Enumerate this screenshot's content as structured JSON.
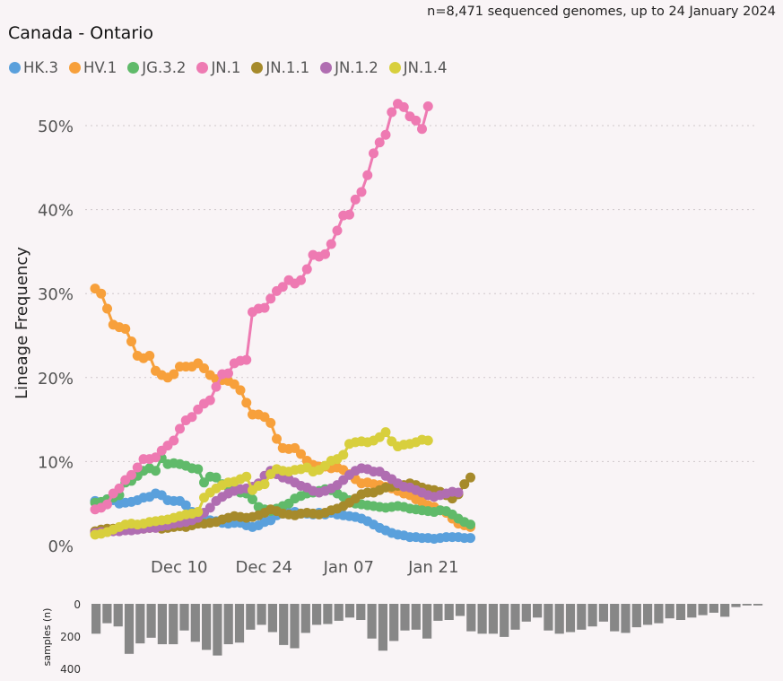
{
  "subtitle": "n=8,471 sequenced genomes, up to 24 January 2024",
  "title": "Canada - Ontario",
  "chart_data": {
    "type": "line",
    "title": "Canada - Ontario",
    "subtitle": "n=8,471 sequenced genomes, up to 24 January 2024",
    "ylabel": "Lineage Frequency",
    "xlabel": "",
    "ylim": [
      0,
      55
    ],
    "yticks": [
      "0%",
      "10%",
      "20%",
      "30%",
      "40%",
      "50%"
    ],
    "xticks": [
      "Dec 10",
      "Dec 24",
      "Jan 07",
      "Jan 21"
    ],
    "grid": true,
    "legend_position": "top-left",
    "start_date": "2023-11-27",
    "series": [
      {
        "name": "HK.3",
        "color": "#5aa0dc",
        "values": [
          5.3,
          5.1,
          5.5,
          5.4,
          5.0,
          5.1,
          5.2,
          5.4,
          5.7,
          5.8,
          6.2,
          6.0,
          5.4,
          5.3,
          5.3,
          4.8,
          4.0,
          3.8,
          3.3,
          3.0,
          2.9,
          2.7,
          2.6,
          2.7,
          2.7,
          2.4,
          2.2,
          2.4,
          2.8,
          3.0,
          3.6,
          3.8,
          3.9,
          4.0,
          3.8,
          3.8,
          3.7,
          3.9,
          3.7,
          3.9,
          3.7,
          3.6,
          3.5,
          3.4,
          3.2,
          2.9,
          2.5,
          2.1,
          1.8,
          1.5,
          1.3,
          1.2,
          1.0,
          1.0,
          0.9,
          0.9,
          0.8,
          0.9,
          1.0,
          1.0,
          1.0,
          0.9,
          0.9
        ]
      },
      {
        "name": "HV.1",
        "color": "#f7a03b",
        "values": [
          30.6,
          30.0,
          28.2,
          26.3,
          26.0,
          25.8,
          24.3,
          22.6,
          22.3,
          22.6,
          20.8,
          20.3,
          20.0,
          20.4,
          21.3,
          21.3,
          21.3,
          21.7,
          21.1,
          20.3,
          19.8,
          19.7,
          19.6,
          19.2,
          18.5,
          17.0,
          15.6,
          15.6,
          15.3,
          14.6,
          12.7,
          11.6,
          11.5,
          11.6,
          10.9,
          10.1,
          9.6,
          9.4,
          9.4,
          9.2,
          9.3,
          9.0,
          8.5,
          7.9,
          7.4,
          7.5,
          7.3,
          7.2,
          7.0,
          6.8,
          6.5,
          6.2,
          6.0,
          5.5,
          5.2,
          4.8,
          4.6,
          4.2,
          3.9,
          3.2,
          2.6,
          2.4,
          2.2
        ]
      },
      {
        "name": "JG.3.2",
        "color": "#60ba6a",
        "values": [
          5.1,
          5.2,
          5.5,
          5.7,
          6.0,
          7.5,
          7.7,
          8.3,
          8.9,
          9.2,
          8.9,
          10.4,
          9.7,
          9.8,
          9.7,
          9.5,
          9.2,
          9.1,
          7.5,
          8.2,
          8.1,
          7.3,
          7.0,
          6.7,
          6.3,
          6.2,
          5.5,
          4.6,
          4.3,
          4.1,
          4.4,
          4.7,
          5.0,
          5.6,
          5.9,
          6.2,
          6.3,
          6.5,
          6.7,
          6.6,
          6.2,
          5.8,
          5.4,
          5.0,
          4.9,
          4.8,
          4.7,
          4.6,
          4.5,
          4.6,
          4.7,
          4.6,
          4.4,
          4.3,
          4.2,
          4.1,
          4.0,
          4.2,
          4.1,
          3.7,
          3.2,
          2.8,
          2.5
        ]
      },
      {
        "name": "JN.1",
        "color": "#ee7ab2",
        "values": [
          4.3,
          4.5,
          4.9,
          6.2,
          6.8,
          7.8,
          8.4,
          9.3,
          10.3,
          10.3,
          10.5,
          11.3,
          11.9,
          12.5,
          13.9,
          14.9,
          15.3,
          16.2,
          16.9,
          17.3,
          18.9,
          20.4,
          20.5,
          21.7,
          22.0,
          22.1,
          27.8,
          28.2,
          28.3,
          29.4,
          30.3,
          30.8,
          31.6,
          31.2,
          31.6,
          32.9,
          34.6,
          34.4,
          34.7,
          35.9,
          37.5,
          39.3,
          39.4,
          41.2,
          42.1,
          44.1,
          46.7,
          48.0,
          48.9,
          51.6,
          52.6,
          52.2,
          51.1,
          50.6,
          49.6,
          52.3
        ]
      },
      {
        "name": "JN.1.1",
        "color": "#a68a2b",
        "values": [
          1.7,
          1.9,
          2.0,
          2.0,
          2.0,
          2.1,
          2.0,
          2.1,
          2.0,
          2.1,
          2.2,
          2.0,
          2.1,
          2.2,
          2.3,
          2.2,
          2.4,
          2.6,
          2.6,
          2.7,
          2.8,
          3.1,
          3.3,
          3.5,
          3.4,
          3.3,
          3.4,
          3.6,
          3.9,
          4.3,
          4.1,
          3.8,
          3.7,
          3.6,
          3.8,
          3.9,
          3.8,
          3.7,
          3.9,
          4.2,
          4.4,
          4.7,
          5.1,
          5.6,
          6.1,
          6.3,
          6.3,
          6.6,
          6.9,
          7.0,
          7.1,
          7.2,
          7.4,
          7.2,
          6.9,
          6.7,
          6.6,
          6.4,
          6.0,
          5.6,
          6.1,
          7.3,
          8.1
        ]
      },
      {
        "name": "JN.1.2",
        "color": "#b06db1",
        "values": [
          1.5,
          1.6,
          1.6,
          1.7,
          1.7,
          1.8,
          1.8,
          1.9,
          2.0,
          2.1,
          2.1,
          2.3,
          2.4,
          2.6,
          2.7,
          2.8,
          3.0,
          3.3,
          3.9,
          4.5,
          5.3,
          5.8,
          6.2,
          6.5,
          6.7,
          6.8,
          7.0,
          7.4,
          8.3,
          8.9,
          8.5,
          8.1,
          7.9,
          7.5,
          7.1,
          6.9,
          6.5,
          6.3,
          6.5,
          6.8,
          7.2,
          7.8,
          8.4,
          8.9,
          9.2,
          9.1,
          8.8,
          8.8,
          8.3,
          7.9,
          7.4,
          7.0,
          6.9,
          6.6,
          6.3,
          6.0,
          5.8,
          6.0,
          6.2,
          6.4,
          6.3
        ]
      },
      {
        "name": "JN.1.4",
        "color": "#d8cf3d",
        "values": [
          1.3,
          1.4,
          1.6,
          1.9,
          2.2,
          2.5,
          2.6,
          2.5,
          2.6,
          2.8,
          2.9,
          3.0,
          3.1,
          3.3,
          3.5,
          3.7,
          3.8,
          4.0,
          5.7,
          6.3,
          6.8,
          7.2,
          7.5,
          7.6,
          7.9,
          8.2,
          6.6,
          7.1,
          7.3,
          8.5,
          9.1,
          8.9,
          8.8,
          9.0,
          9.1,
          9.3,
          8.8,
          9.0,
          9.5,
          10.1,
          10.3,
          10.8,
          12.1,
          12.3,
          12.4,
          12.3,
          12.5,
          12.9,
          13.5,
          12.4,
          11.8,
          12.0,
          12.1,
          12.3,
          12.6,
          12.5
        ]
      }
    ],
    "samples": {
      "ylabel": "samples (n)",
      "yticks": [
        "0",
        "200",
        "400"
      ],
      "values": [
        185,
        120,
        140,
        310,
        245,
        210,
        250,
        250,
        165,
        235,
        285,
        320,
        250,
        240,
        160,
        130,
        175,
        255,
        275,
        180,
        130,
        125,
        105,
        85,
        100,
        215,
        290,
        230,
        165,
        160,
        215,
        105,
        100,
        75,
        170,
        185,
        185,
        205,
        160,
        110,
        85,
        165,
        185,
        175,
        160,
        140,
        110,
        170,
        180,
        145,
        130,
        120,
        90,
        100,
        85,
        70,
        55,
        80,
        20,
        10,
        10
      ]
    }
  }
}
